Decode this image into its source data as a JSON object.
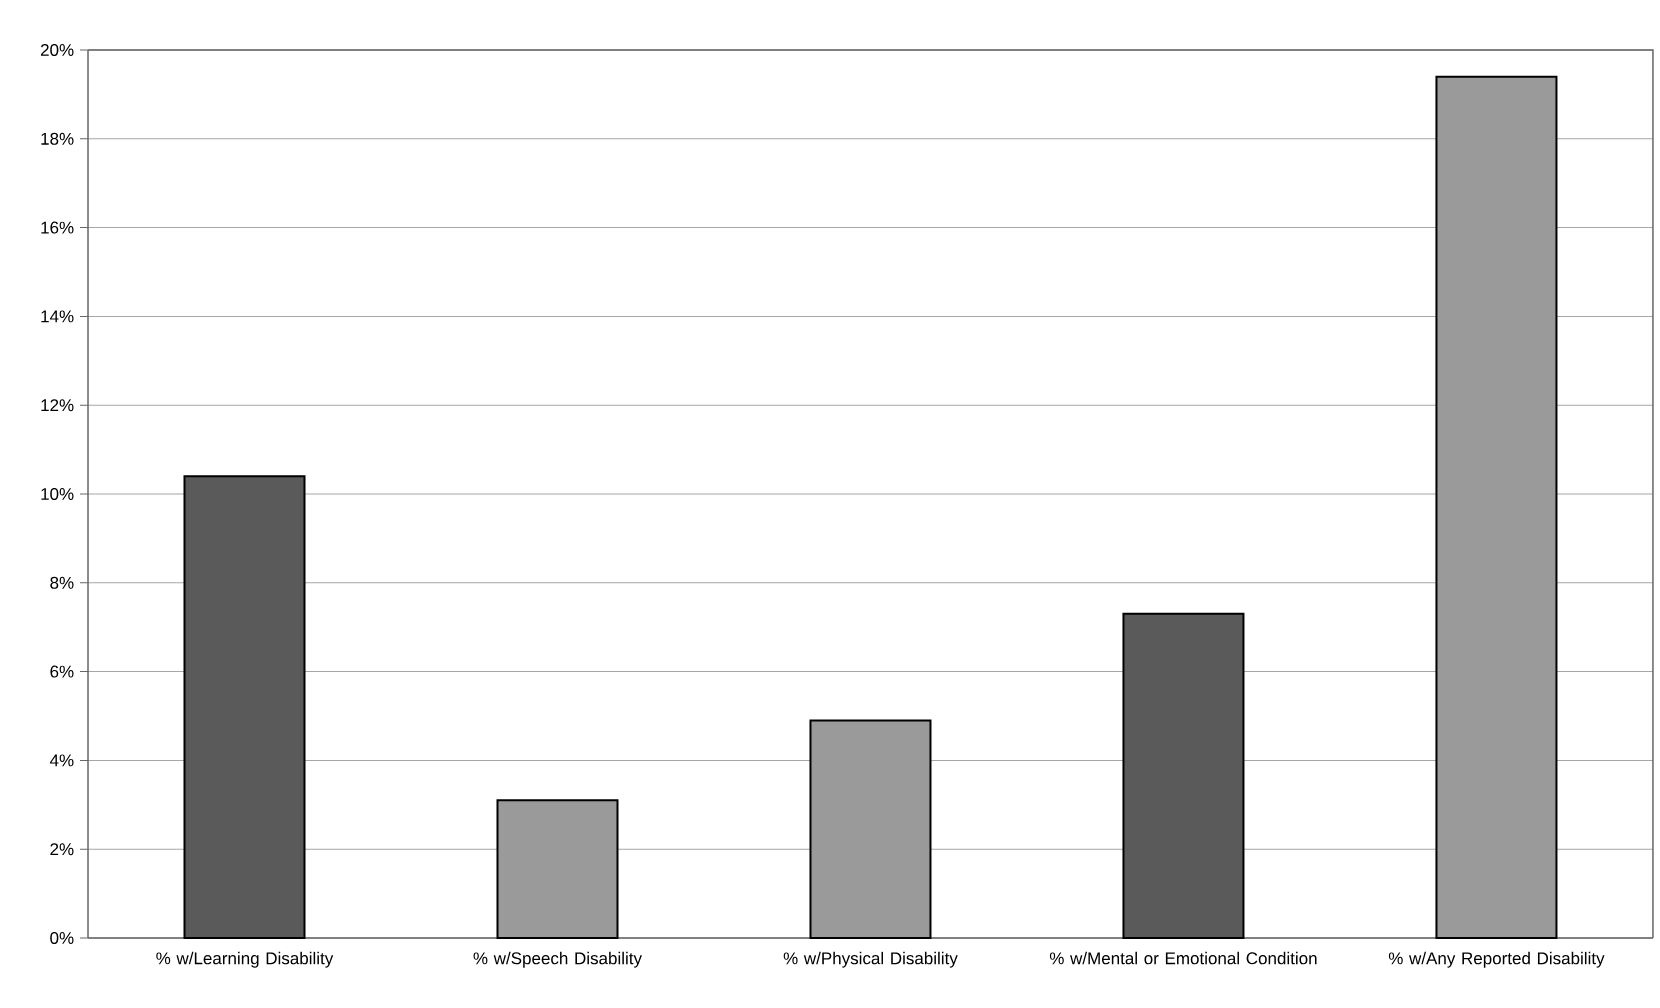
{
  "chart_data": {
    "type": "bar",
    "categories": [
      "% w/Learning Disability",
      "% w/Speech Disability",
      "% w/Physical Disability",
      "% w/Mental or Emotional Condition",
      "% w/Any Reported Disability"
    ],
    "values": [
      10.4,
      3.1,
      4.9,
      7.3,
      19.4
    ],
    "colors": [
      "#5a5a5a",
      "#9a9a9a",
      "#9a9a9a",
      "#5a5a5a",
      "#9a9a9a"
    ],
    "ylim": [
      0,
      20
    ],
    "yticks": [
      {
        "value": 0,
        "label": "0%"
      },
      {
        "value": 2,
        "label": "2%"
      },
      {
        "value": 4,
        "label": "4%"
      },
      {
        "value": 6,
        "label": "6%"
      },
      {
        "value": 8,
        "label": "8%"
      },
      {
        "value": 10,
        "label": "10%"
      },
      {
        "value": 12,
        "label": "12%"
      },
      {
        "value": 14,
        "label": "14%"
      },
      {
        "value": 16,
        "label": "16%"
      },
      {
        "value": 18,
        "label": "18%"
      },
      {
        "value": 20,
        "label": "20%"
      }
    ],
    "grid": "y"
  }
}
